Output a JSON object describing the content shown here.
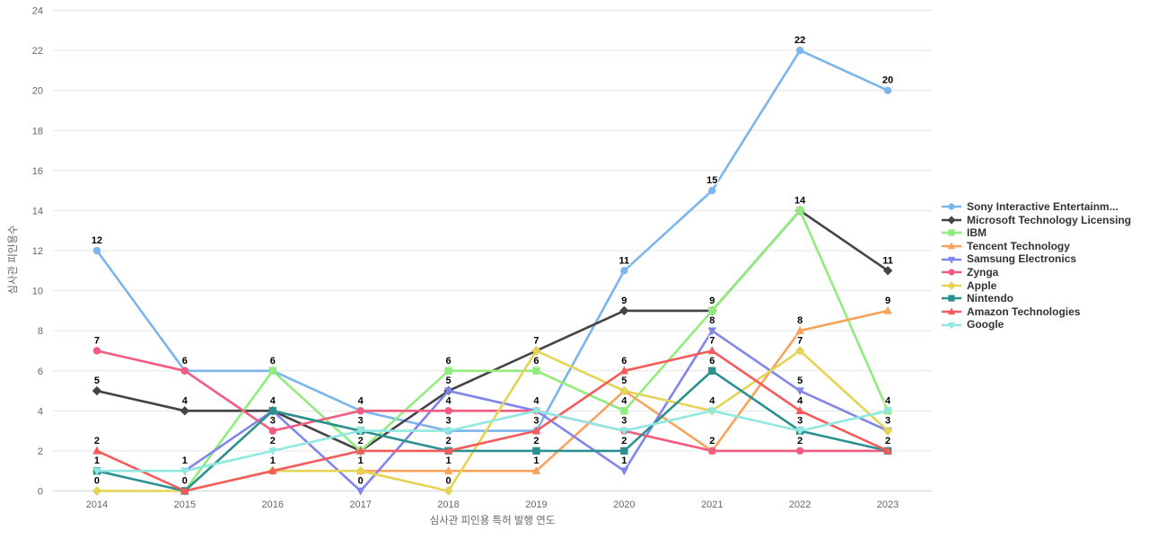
{
  "chart_data": {
    "type": "line",
    "title": "",
    "xlabel": "심사관 피인용 특허 발행 연도",
    "ylabel": "심사관 피인용수",
    "categories": [
      "2014",
      "2015",
      "2016",
      "2017",
      "2018",
      "2019",
      "2020",
      "2021",
      "2022",
      "2023"
    ],
    "ylim": [
      0,
      24
    ],
    "ytick_step": 2,
    "grid": true,
    "legend_position": "right",
    "data_labels_on": true,
    "series": [
      {
        "name": "Sony Interactive Entertainm...",
        "color": "#7cb5ec",
        "marker": "circle",
        "values": [
          12,
          6,
          6,
          4,
          3,
          3,
          11,
          15,
          22,
          20
        ]
      },
      {
        "name": "Microsoft Technology Licensing",
        "color": "#434348",
        "marker": "diamond",
        "values": [
          5,
          4,
          4,
          2,
          5,
          7,
          9,
          9,
          14,
          11
        ]
      },
      {
        "name": "IBM",
        "color": "#90ed7d",
        "marker": "square",
        "values": [
          null,
          0,
          6,
          2,
          6,
          6,
          4,
          9,
          14,
          4
        ]
      },
      {
        "name": "Tencent Technology",
        "color": "#f7a35c",
        "marker": "triangle",
        "values": [
          null,
          null,
          null,
          1,
          1,
          1,
          5,
          2,
          8,
          9
        ]
      },
      {
        "name": "Samsung Electronics",
        "color": "#8085e9",
        "marker": "triangle-down",
        "values": [
          null,
          1,
          4,
          0,
          5,
          4,
          1,
          8,
          5,
          3
        ]
      },
      {
        "name": "Zynga",
        "color": "#f15c80",
        "marker": "circle",
        "values": [
          7,
          6,
          3,
          4,
          4,
          4,
          3,
          2,
          2,
          2
        ]
      },
      {
        "name": "Apple",
        "color": "#e4d354",
        "marker": "diamond",
        "values": [
          0,
          0,
          1,
          1,
          0,
          7,
          5,
          4,
          7,
          3
        ]
      },
      {
        "name": "Nintendo",
        "color": "#2b908f",
        "marker": "square",
        "values": [
          1,
          0,
          4,
          3,
          2,
          2,
          2,
          6,
          3,
          2
        ]
      },
      {
        "name": "Amazon Technologies",
        "color": "#f45b5b",
        "marker": "triangle",
        "values": [
          2,
          0,
          1,
          2,
          2,
          3,
          6,
          7,
          4,
          2
        ]
      },
      {
        "name": "Google",
        "color": "#91e8e1",
        "marker": "triangle-down",
        "values": [
          1,
          1,
          2,
          3,
          3,
          4,
          3,
          4,
          3,
          4
        ]
      }
    ],
    "colors": {
      "grid": "#e6e6e6",
      "axis_line": "#ccd6eb",
      "tick_label": "#666666",
      "axis_title": "#666666",
      "legend_text": "#333333",
      "data_label": "#000000",
      "background": "#ffffff"
    }
  }
}
